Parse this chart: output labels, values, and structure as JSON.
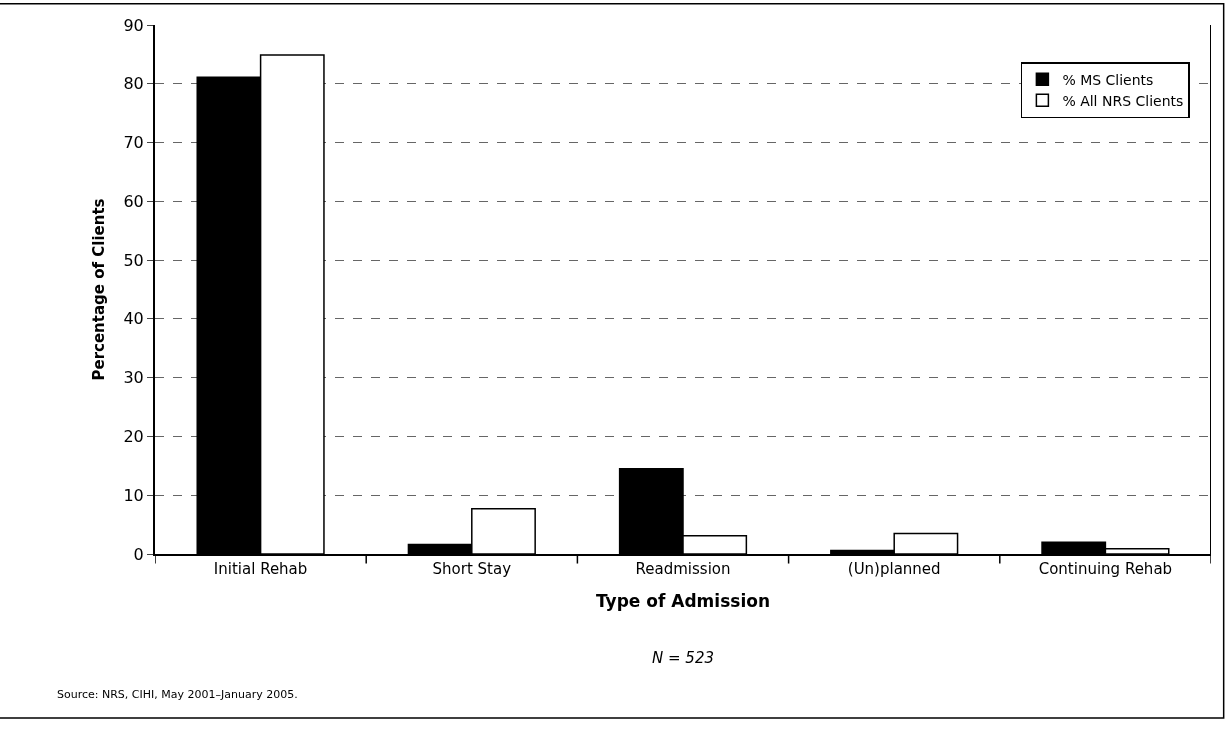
{
  "chart_data": {
    "type": "bar",
    "ylabel": "Percentage of Clients",
    "xlabel": "Type of Admission",
    "categories": [
      "Initial Rehab",
      "Short Stay",
      "Readmission",
      "(Un)planned",
      "Continuing Rehab"
    ],
    "series": [
      {
        "name": "% MS Clients",
        "color": "#000000",
        "values": [
          81.1,
          1.6,
          14.5,
          0.6,
          2.0
        ]
      },
      {
        "name": "% All NRS Clients",
        "color": "#ffffff",
        "values": [
          84.9,
          7.7,
          3.1,
          3.5,
          0.9
        ]
      }
    ],
    "ylim": [
      0,
      90
    ],
    "yticks": [
      0,
      10,
      20,
      30,
      40,
      50,
      60,
      70,
      80,
      90
    ],
    "grid": "y",
    "legend": "top right",
    "annotations": [
      "N = 523",
      "Source: NRS, CIHI, May 2001–January 2005."
    ]
  }
}
